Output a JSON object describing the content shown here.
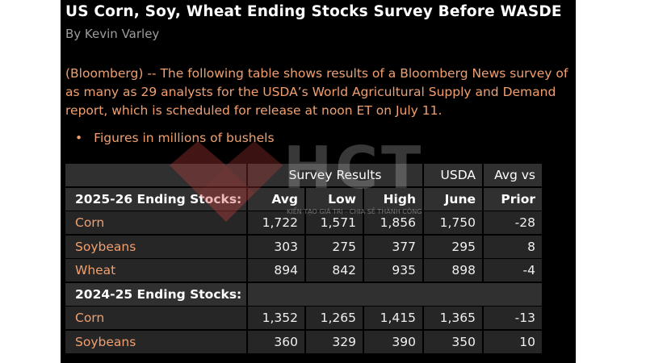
{
  "article": {
    "title": "US Corn, Soy, Wheat Ending Stocks Survey Before WASDE",
    "byline": "By Kevin Varley",
    "intro": "(Bloomberg) -- The following table shows results of a Bloomberg News survey of as many as 29 analysts for the USDA’s World Agricultural Supply and Demand report, which is scheduled for release at noon ET on July 11.",
    "bullet": "Figures in millions of bushels"
  },
  "table": {
    "header1": {
      "survey": "Survey Results",
      "usda": "USDA",
      "avgvs": "Avg vs"
    },
    "section1": {
      "label": "2025-26 Ending Stocks:",
      "avg": "Avg",
      "low": "Low",
      "high": "High",
      "june": "June",
      "prior": "Prior"
    },
    "rows1": [
      {
        "name": "Corn",
        "avg": "1,722",
        "low": "1,571",
        "high": "1,856",
        "usda": "1,750",
        "diff": "-28"
      },
      {
        "name": "Soybeans",
        "avg": "303",
        "low": "275",
        "high": "377",
        "usda": "295",
        "diff": "8"
      },
      {
        "name": "Wheat",
        "avg": "894",
        "low": "842",
        "high": "935",
        "usda": "898",
        "diff": "-4"
      }
    ],
    "section2": {
      "label": "2024-25 Ending Stocks:"
    },
    "rows2": [
      {
        "name": "Corn",
        "avg": "1,352",
        "low": "1,265",
        "high": "1,415",
        "usda": "1,365",
        "diff": "-13"
      },
      {
        "name": "Soybeans",
        "avg": "360",
        "low": "329",
        "high": "390",
        "usda": "350",
        "diff": "10"
      }
    ]
  },
  "watermark": {
    "letters": "HCT",
    "slogan": "KIẾN TẠO GIÁ TRỊ - CHIA SẺ THÀNH CÔNG",
    "color": "#d04040"
  }
}
